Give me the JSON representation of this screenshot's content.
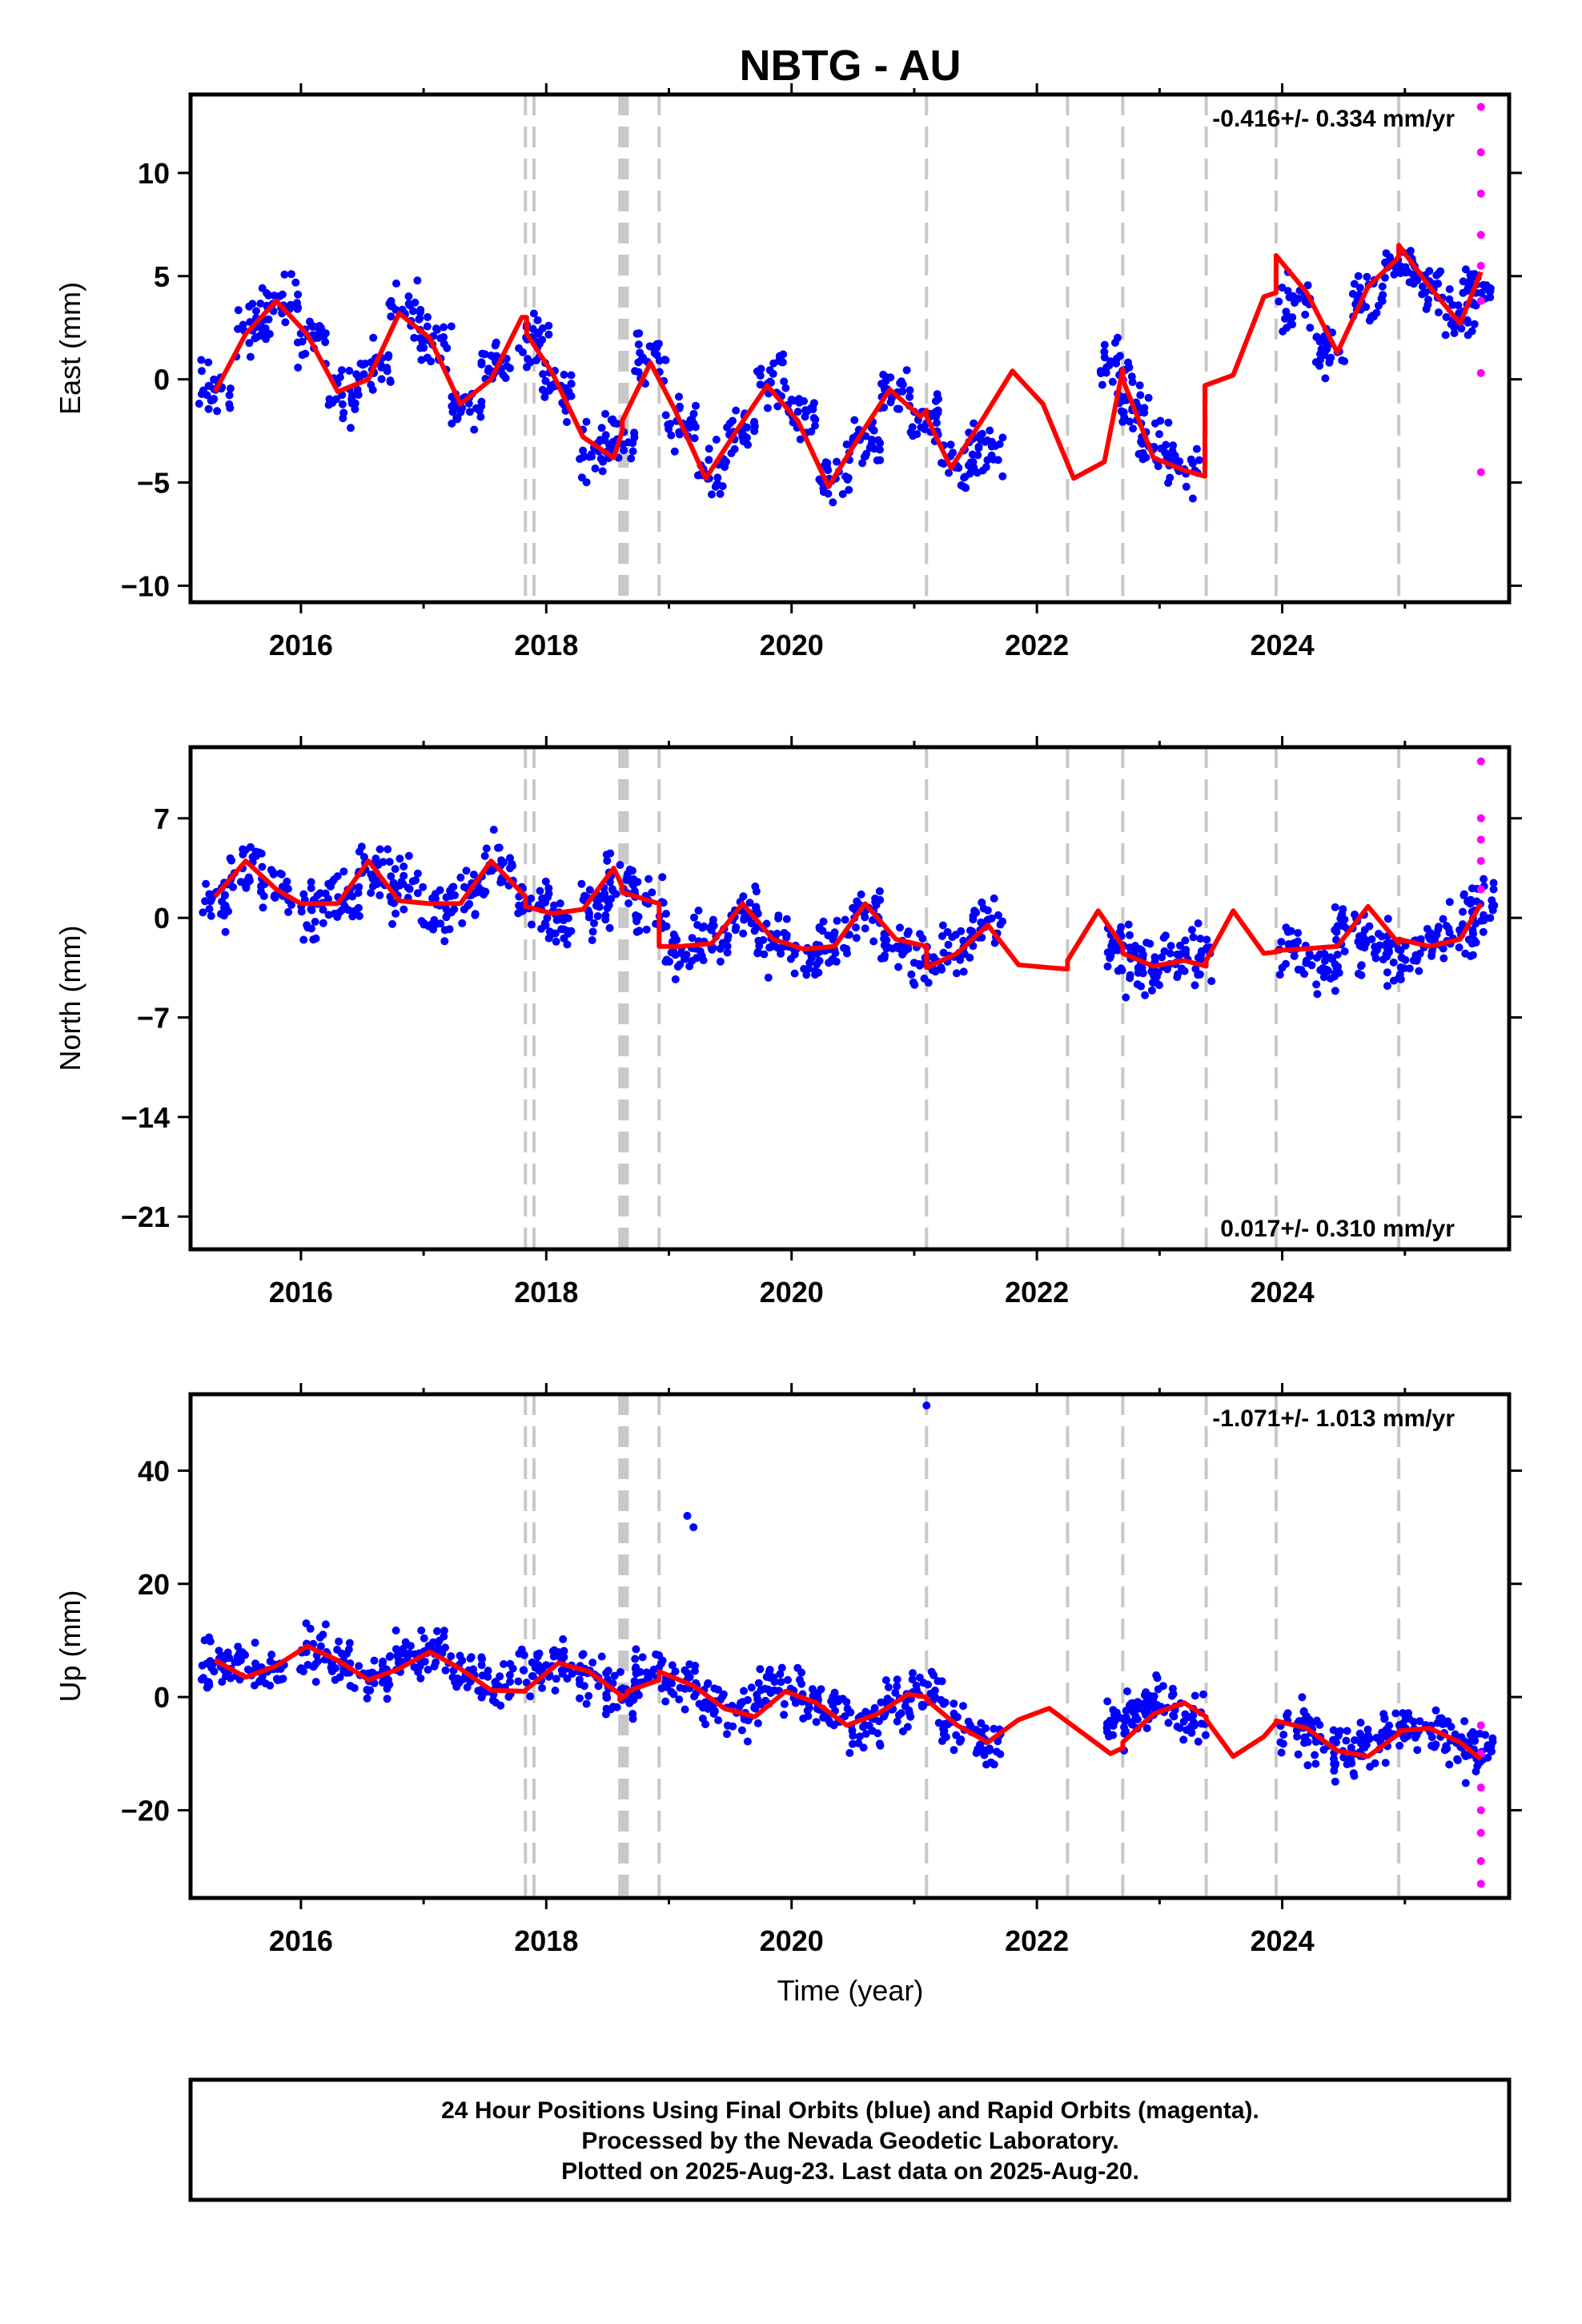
{
  "title": "NBTG - AU",
  "xlabel": "Time (year)",
  "x_tick_labels": [
    "2016",
    "2018",
    "2020",
    "2022",
    "2024"
  ],
  "colors": {
    "final_orbits": "#0000ff",
    "rapid_orbits": "#ff00ff",
    "model_fit": "#ff0000",
    "event_lines": "#c8c8c8"
  },
  "footer": {
    "line1": "24 Hour Positions Using Final Orbits (blue) and Rapid Orbits (magenta).",
    "line2": "Processed by the Nevada Geodetic Laboratory.",
    "line3": "Plotted on 2025-Aug-23. Last data on 2025-Aug-20."
  },
  "chart_data": [
    {
      "type": "scatter",
      "panel": "east",
      "ylabel": "East (mm)",
      "rate_text": "-0.416+/- 0.334 mm/yr",
      "xlim": [
        2015.1,
        2025.85
      ],
      "ylim": [
        -10.8,
        13.8
      ],
      "x_ticks": [
        2016,
        2018,
        2020,
        2022,
        2024
      ],
      "y_ticks": [
        -10,
        -5,
        0,
        5,
        10
      ],
      "y_tick_labels": [
        "−10",
        "−5",
        "0",
        "5",
        "10"
      ],
      "event_lines": [
        2017.83,
        2017.9,
        2018.6,
        2018.62,
        2018.64,
        2018.66,
        2018.92,
        2021.1,
        2022.25,
        2022.7,
        2023.38,
        2023.95,
        2024.95
      ],
      "series": [
        {
          "name": "Final orbits",
          "style": "points",
          "x": [
            2015.3,
            2015.6,
            2015.85,
            2016.1,
            2016.35,
            2016.6,
            2016.85,
            2017.1,
            2017.35,
            2017.6,
            2017.9,
            2018.1,
            2018.4,
            2018.6,
            2018.85,
            2019.1,
            2019.35,
            2019.6,
            2019.85,
            2020.1,
            2020.35,
            2020.6,
            2020.85,
            2021.1,
            2021.35,
            2021.6,
            2022.65,
            2022.8,
            2022.95,
            2023.2,
            2024.1,
            2024.4,
            2024.7,
            2024.95,
            2025.2,
            2025.45,
            2025.6
          ],
          "y": [
            -0.5,
            2.5,
            3.8,
            2.0,
            -0.8,
            0.5,
            3.5,
            1.8,
            -1.2,
            0.8,
            2.0,
            -0.5,
            -3.5,
            -3.0,
            1.0,
            -2.0,
            -4.5,
            -2.5,
            0.0,
            -1.5,
            -4.8,
            -3.0,
            -0.5,
            -2.0,
            -4.0,
            -3.5,
            0.5,
            -1.5,
            -3.5,
            -4.0,
            3.5,
            1.5,
            4.0,
            5.5,
            4.5,
            3.0,
            4.5
          ]
        },
        {
          "name": "Rapid orbits",
          "style": "points",
          "x": [
            2025.62,
            2025.62,
            2025.62,
            2025.62,
            2025.62,
            2025.62,
            2025.62,
            2025.62
          ],
          "y": [
            13.2,
            11.0,
            9.0,
            7.0,
            5.5,
            3.8,
            0.3,
            -4.5
          ]
        },
        {
          "name": "Model fit",
          "style": "line",
          "x": [
            2015.3,
            2015.55,
            2015.8,
            2016.05,
            2016.3,
            2016.55,
            2016.8,
            2017.05,
            2017.3,
            2017.55,
            2017.8,
            2017.84,
            2017.84,
            2018.05,
            2018.3,
            2018.55,
            2018.62,
            2018.62,
            2018.85,
            2019.05,
            2019.3,
            2019.55,
            2019.8,
            2020.05,
            2020.3,
            2020.55,
            2020.8,
            2021.05,
            2021.1,
            2021.1,
            2021.3,
            2021.55,
            2021.8,
            2022.05,
            2022.3,
            2022.55,
            2022.7,
            2022.7,
            2022.95,
            2023.2,
            2023.37,
            2023.37,
            2023.6,
            2023.85,
            2023.95,
            2023.95,
            2024.2,
            2024.45,
            2024.7,
            2024.95,
            2024.95,
            2025.2,
            2025.45,
            2025.62
          ],
          "y": [
            -0.6,
            2.2,
            3.8,
            2.2,
            -0.6,
            0.0,
            3.2,
            2.0,
            -1.2,
            0.0,
            3.0,
            3.0,
            2.2,
            0.3,
            -2.8,
            -3.8,
            -2.5,
            -2.0,
            0.8,
            -1.5,
            -4.8,
            -2.5,
            -0.3,
            -2.0,
            -5.2,
            -2.8,
            -0.5,
            -1.8,
            -1.5,
            -1.8,
            -4.3,
            -2.0,
            0.4,
            -1.2,
            -4.8,
            -4.0,
            0.5,
            0.0,
            -3.8,
            -4.4,
            -4.7,
            -0.3,
            0.2,
            4.0,
            4.2,
            6.0,
            4.2,
            1.3,
            4.5,
            5.9,
            6.5,
            4.5,
            2.7,
            5.2
          ]
        }
      ]
    },
    {
      "type": "scatter",
      "panel": "north",
      "ylabel": "North (mm)",
      "rate_text": "0.017+/- 0.310 mm/yr",
      "xlim": [
        2015.1,
        2025.85
      ],
      "ylim": [
        -23.3,
        12.0
      ],
      "x_ticks": [
        2016,
        2018,
        2020,
        2022,
        2024
      ],
      "y_ticks": [
        -21,
        -14,
        -7,
        0,
        7
      ],
      "y_tick_labels": [
        "−21",
        "−14",
        "−7",
        "0",
        "7"
      ],
      "event_lines": [
        2017.83,
        2017.9,
        2018.6,
        2018.62,
        2018.64,
        2018.66,
        2018.92,
        2021.1,
        2022.25,
        2022.7,
        2023.38,
        2023.95,
        2024.95
      ],
      "series": [
        {
          "name": "Final orbits",
          "style": "points",
          "x": [
            2015.3,
            2015.55,
            2015.8,
            2016.1,
            2016.35,
            2016.6,
            2016.85,
            2017.1,
            2017.35,
            2017.6,
            2017.9,
            2018.1,
            2018.4,
            2018.6,
            2018.85,
            2019.1,
            2019.35,
            2019.6,
            2019.85,
            2020.1,
            2020.35,
            2020.6,
            2020.85,
            2021.1,
            2021.35,
            2021.6,
            2022.7,
            2022.85,
            2023.05,
            2023.3,
            2024.1,
            2024.35,
            2024.55,
            2024.75,
            2024.95,
            2025.2,
            2025.45,
            2025.6
          ],
          "y": [
            1.0,
            3.5,
            2.0,
            0.5,
            1.5,
            3.5,
            2.0,
            0.5,
            1.5,
            3.5,
            1.0,
            -0.5,
            1.0,
            2.5,
            0.5,
            -2.5,
            -1.5,
            0.5,
            -1.5,
            -2.5,
            -1.5,
            0.5,
            -1.5,
            -3.0,
            -2.0,
            -0.5,
            -2.0,
            -3.5,
            -3.0,
            -2.5,
            -2.5,
            -3.5,
            -1.0,
            -2.0,
            -2.5,
            -2.0,
            -1.5,
            1.0
          ]
        },
        {
          "name": "Rapid orbits",
          "style": "points",
          "x": [
            2025.62,
            2025.62,
            2025.62,
            2025.62,
            2025.62
          ],
          "y": [
            11.0,
            7.0,
            5.5,
            4.0,
            2.0
          ]
        },
        {
          "name": "Model fit",
          "style": "line",
          "x": [
            2015.3,
            2015.55,
            2015.8,
            2016.0,
            2016.3,
            2016.55,
            2016.8,
            2017.05,
            2017.3,
            2017.55,
            2017.83,
            2017.83,
            2018.05,
            2018.3,
            2018.55,
            2018.62,
            2018.62,
            2018.92,
            2018.92,
            2019.1,
            2019.35,
            2019.6,
            2019.85,
            2020.1,
            2020.35,
            2020.6,
            2020.85,
            2021.1,
            2021.1,
            2021.35,
            2021.6,
            2021.85,
            2022.1,
            2022.25,
            2022.25,
            2022.5,
            2022.7,
            2022.7,
            2022.95,
            2023.2,
            2023.38,
            2023.38,
            2023.6,
            2023.85,
            2023.95,
            2023.95,
            2024.15,
            2024.45,
            2024.7,
            2024.95,
            2024.95,
            2025.2,
            2025.45,
            2025.62
          ],
          "y": [
            1.5,
            4.0,
            2.0,
            1.0,
            1.0,
            4.0,
            1.2,
            1.0,
            1.0,
            4.0,
            1.5,
            0.8,
            0.3,
            0.6,
            3.5,
            2.2,
            1.8,
            1.0,
            -2.0,
            -2.0,
            -1.8,
            1.0,
            -1.5,
            -2.2,
            -2.0,
            1.0,
            -1.5,
            -2.0,
            -3.5,
            -2.5,
            -0.5,
            -3.3,
            -3.5,
            -3.6,
            -3.0,
            0.5,
            -2.0,
            -2.5,
            -3.4,
            -3.0,
            -3.4,
            -3.0,
            0.5,
            -2.5,
            -2.4,
            -2.3,
            -2.2,
            -2.0,
            0.8,
            -1.8,
            -1.5,
            -2.0,
            -1.5,
            1.0
          ]
        }
      ]
    },
    {
      "type": "scatter",
      "panel": "up",
      "ylabel": "Up (mm)",
      "rate_text": "-1.071+/- 1.013 mm/yr",
      "xlim": [
        2015.1,
        2025.85
      ],
      "ylim": [
        -35.5,
        53.5
      ],
      "x_ticks": [
        2016,
        2018,
        2020,
        2022,
        2024
      ],
      "y_ticks": [
        -20,
        0,
        20,
        40
      ],
      "y_tick_labels": [
        "−20",
        "0",
        "20",
        "40"
      ],
      "event_lines": [
        2017.83,
        2017.9,
        2018.6,
        2018.62,
        2018.64,
        2018.66,
        2018.92,
        2021.1,
        2022.25,
        2022.7,
        2023.38,
        2023.95,
        2024.95
      ],
      "series": [
        {
          "name": "Final orbits",
          "style": "points",
          "x": [
            2015.3,
            2015.5,
            2015.75,
            2016.1,
            2016.35,
            2016.6,
            2016.85,
            2017.1,
            2017.35,
            2017.6,
            2017.9,
            2018.15,
            2018.4,
            2018.6,
            2018.85,
            2019.1,
            2019.15,
            2019.2,
            2019.35,
            2019.6,
            2019.85,
            2020.1,
            2020.35,
            2020.6,
            2020.85,
            2021.1,
            2021.1,
            2021.35,
            2021.6,
            2022.7,
            2022.85,
            2023.0,
            2023.25,
            2024.1,
            2024.3,
            2024.55,
            2024.75,
            2024.95,
            2025.2,
            2025.45,
            2025.6
          ],
          "y": [
            5.0,
            6.0,
            4.0,
            8.0,
            6.0,
            3.0,
            7.0,
            8.0,
            4.0,
            2.0,
            5.0,
            6.0,
            3.0,
            0.0,
            4.0,
            3.0,
            32.0,
            30.0,
            -1.0,
            -3.0,
            1.0,
            0.0,
            -3.0,
            -5.0,
            -1.0,
            0.0,
            51.5,
            -5.0,
            -8.0,
            -5.0,
            -2.0,
            -1.0,
            -4.0,
            -5.0,
            -8.0,
            -10.0,
            -8.0,
            -5.0,
            -6.0,
            -8.0,
            -10.0
          ]
        },
        {
          "name": "Rapid orbits",
          "style": "points",
          "x": [
            2025.62,
            2025.62,
            2025.62,
            2025.62,
            2025.62,
            2025.62,
            2025.62
          ],
          "y": [
            -5.0,
            -10.0,
            -16.0,
            -20.0,
            -24.0,
            -29.0,
            -33.0
          ]
        },
        {
          "name": "Model fit",
          "style": "line",
          "x": [
            2015.3,
            2015.55,
            2015.8,
            2016.05,
            2016.3,
            2016.55,
            2016.8,
            2017.05,
            2017.3,
            2017.55,
            2017.83,
            2017.83,
            2018.1,
            2018.35,
            2018.6,
            2018.6,
            2018.66,
            2018.66,
            2018.92,
            2018.92,
            2019.2,
            2019.45,
            2019.7,
            2019.95,
            2020.2,
            2020.45,
            2020.7,
            2020.95,
            2021.1,
            2021.1,
            2021.35,
            2021.6,
            2021.85,
            2022.1,
            2022.35,
            2022.6,
            2022.7,
            2022.7,
            2022.95,
            2023.2,
            2023.38,
            2023.38,
            2023.6,
            2023.85,
            2023.95,
            2023.95,
            2024.2,
            2024.45,
            2024.7,
            2024.95,
            2024.95,
            2025.2,
            2025.45,
            2025.62
          ],
          "y": [
            6.5,
            3.5,
            5.5,
            9.0,
            6.5,
            3.0,
            5.0,
            8.0,
            5.0,
            1.2,
            1.0,
            1.2,
            6.0,
            4.5,
            0.5,
            -0.5,
            0.5,
            1.0,
            3.0,
            4.5,
            2.0,
            -2.0,
            -3.5,
            1.0,
            -1.0,
            -5.0,
            -3.0,
            0.5,
            0.0,
            -0.5,
            -5.0,
            -8.0,
            -4.0,
            -2.0,
            -6.0,
            -10.0,
            -9.0,
            -8.0,
            -3.0,
            -1.0,
            -3.5,
            -4.0,
            -10.5,
            -7.0,
            -4.5,
            -4.2,
            -5.5,
            -9.5,
            -10.5,
            -6.5,
            -6.0,
            -5.5,
            -8.0,
            -11.0
          ]
        }
      ]
    }
  ]
}
